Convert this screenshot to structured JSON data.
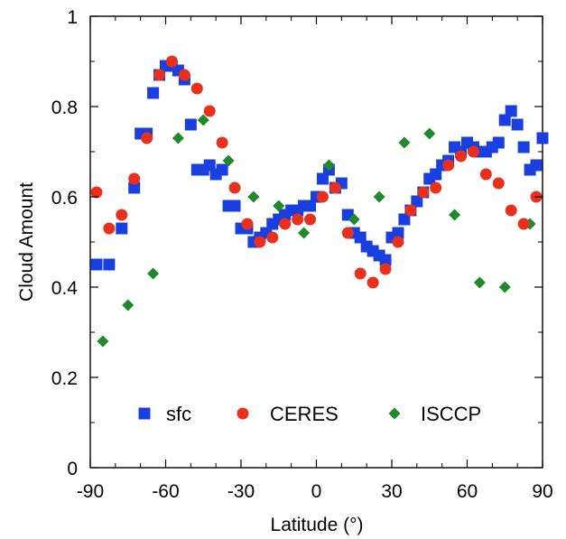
{
  "chart_data": {
    "type": "scatter",
    "xlabel": "Latitude (°)",
    "ylabel": "Cloud Amount",
    "xlim": [
      -90,
      90
    ],
    "ylim": [
      0,
      1
    ],
    "xticks": [
      -90,
      -60,
      -30,
      0,
      30,
      60,
      90
    ],
    "xtick_labels": [
      "-90",
      "-60",
      "-30",
      "0",
      "30",
      "60",
      "90"
    ],
    "yticks": [
      0,
      0.2,
      0.4,
      0.6,
      0.8,
      1
    ],
    "ytick_labels": [
      "0",
      "0.2",
      "0.4",
      "0.6",
      "0.8",
      "1"
    ],
    "grid": false,
    "legend": {
      "placement": "bottom-center",
      "orientation": "horizontal"
    },
    "series": [
      {
        "name": "sfc",
        "marker": "square",
        "color": "#1a3fe0",
        "x": [
          -87.5,
          -77.5,
          -72.5,
          -67.5,
          -62.5,
          -57.5,
          -52.5,
          -47.5,
          -42.5,
          -37.5,
          -32.5,
          -27.5,
          -22.5,
          -17.5,
          -12.5,
          -7.5,
          -2.5,
          2.5,
          7.5,
          12.5,
          17.5,
          22.5,
          27.5,
          32.5,
          37.5,
          42.5,
          47.5,
          52.5,
          57.5,
          62.5,
          67.5,
          72.5,
          77.5,
          82.5,
          87.5,
          -82.5,
          -70,
          -65,
          -60,
          -55,
          -50,
          -45,
          -40,
          -35,
          -30,
          -25,
          -20,
          -15,
          -10,
          -5,
          0,
          5,
          10,
          15,
          20,
          25,
          30,
          35,
          40,
          45,
          50,
          55,
          60,
          65,
          70,
          75,
          80,
          85,
          90
        ],
        "y": [
          0.45,
          0.53,
          0.62,
          0.74,
          0.87,
          0.89,
          0.86,
          0.66,
          0.67,
          0.66,
          0.58,
          0.53,
          0.51,
          0.54,
          0.56,
          0.57,
          0.58,
          0.64,
          0.62,
          0.56,
          0.51,
          0.48,
          0.46,
          0.52,
          0.57,
          0.61,
          0.65,
          0.68,
          0.7,
          0.71,
          0.7,
          0.72,
          0.79,
          0.71,
          0.67,
          0.45,
          0.74,
          0.83,
          0.89,
          0.88,
          0.76,
          0.66,
          0.65,
          0.58,
          0.53,
          0.5,
          0.52,
          0.55,
          0.57,
          0.58,
          0.6,
          0.66,
          0.63,
          0.52,
          0.49,
          0.47,
          0.51,
          0.55,
          0.59,
          0.64,
          0.67,
          0.71,
          0.72,
          0.7,
          0.71,
          0.77,
          0.76,
          0.66,
          0.73
        ]
      },
      {
        "name": "CERES",
        "marker": "circle",
        "color": "#e8301c",
        "x": [
          -87.5,
          -82.5,
          -77.5,
          -72.5,
          -67.5,
          -62.5,
          -57.5,
          -52.5,
          -47.5,
          -42.5,
          -37.5,
          -32.5,
          -27.5,
          -22.5,
          -17.5,
          -12.5,
          -7.5,
          -2.5,
          2.5,
          7.5,
          12.5,
          17.5,
          22.5,
          27.5,
          32.5,
          37.5,
          42.5,
          47.5,
          52.5,
          57.5,
          62.5,
          67.5,
          72.5,
          77.5,
          82.5,
          87.5
        ],
        "y": [
          0.61,
          0.53,
          0.56,
          0.64,
          0.73,
          0.87,
          0.9,
          0.87,
          0.84,
          0.79,
          0.72,
          0.62,
          0.54,
          0.5,
          0.51,
          0.54,
          0.55,
          0.55,
          0.6,
          0.62,
          0.52,
          0.43,
          0.41,
          0.44,
          0.5,
          0.57,
          0.61,
          0.62,
          0.67,
          0.69,
          0.7,
          0.65,
          0.63,
          0.57,
          0.54,
          0.6
        ]
      },
      {
        "name": "ISCCP",
        "marker": "diamond",
        "color": "#1f8a2a",
        "x": [
          -85,
          -75,
          -65,
          -55,
          -45,
          -35,
          -25,
          -15,
          -5,
          5,
          15,
          25,
          35,
          45,
          55,
          65,
          75,
          85
        ],
        "y": [
          0.28,
          0.36,
          0.43,
          0.73,
          0.77,
          0.68,
          0.6,
          0.58,
          0.52,
          0.67,
          0.55,
          0.6,
          0.72,
          0.74,
          0.56,
          0.41,
          0.4,
          0.54
        ]
      }
    ]
  }
}
